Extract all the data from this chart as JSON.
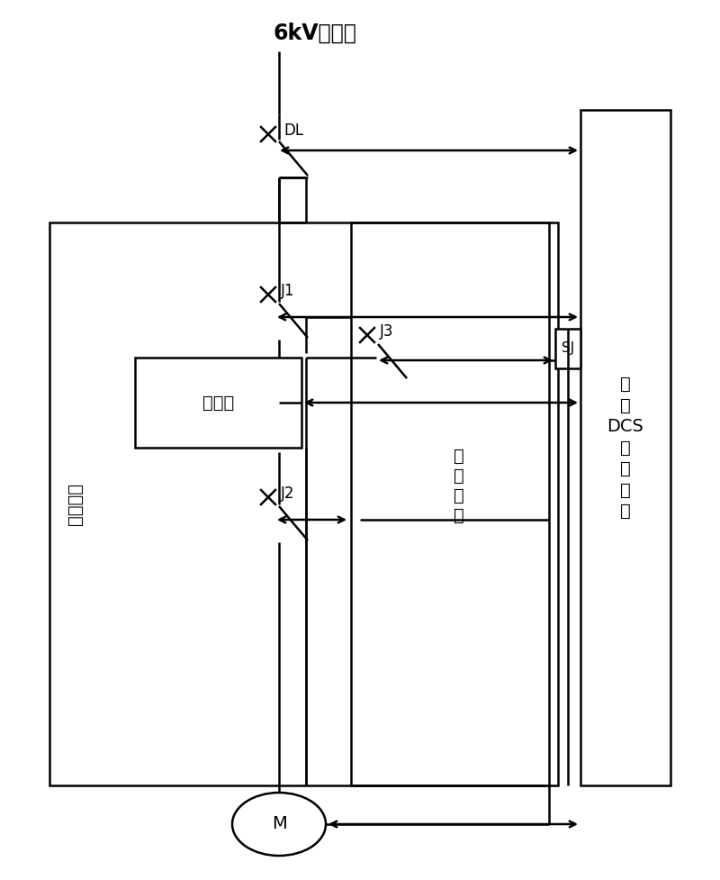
{
  "bg_color": "#ffffff",
  "line_color": "#000000",
  "lw": 1.8,
  "title": "6kV变电所",
  "label_DL": "DL",
  "label_J1": "J1",
  "label_J2": "J2",
  "label_J3": "J3",
  "label_SJ": "SJ",
  "label_M": "M",
  "label_vf_loop": "变频回路",
  "label_gp_loop": "工\n频\n回\n路",
  "label_vfd": "变频器",
  "label_dcs": "锅\n炉\nDCS\n控\n制\n系\n统",
  "fs_title": 17,
  "fs_label": 14,
  "fs_small": 12
}
